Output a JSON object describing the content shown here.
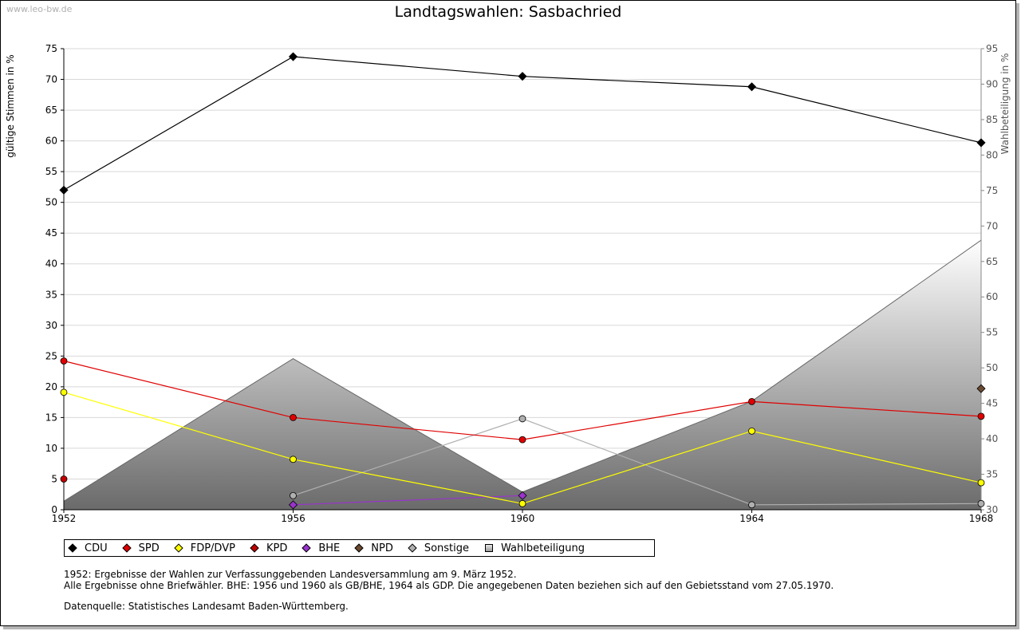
{
  "page": {
    "watermark": "www.leo-bw.de",
    "notes": {
      "line1": "1952: Ergebnisse der Wahlen zur Verfassunggebenden Landesversammlung am 9. März 1952.",
      "line2": "Alle Ergebnisse ohne Briefwähler. BHE: 1956 und 1960 als GB/BHE, 1964 als GDP. Die angegebenen Daten beziehen sich auf den Gebietsstand vom 27.05.1970.",
      "source": "Datenquelle: Statistisches Landesamt Baden-Württemberg."
    }
  },
  "legend": [
    {
      "label": "CDU",
      "color": "#000000"
    },
    {
      "label": "SPD",
      "color": "#e00000"
    },
    {
      "label": "FDP/DVP",
      "color": "#ffff00"
    },
    {
      "label": "KPD",
      "color": "#c00000"
    },
    {
      "label": "BHE",
      "color": "#9933cc"
    },
    {
      "label": "NPD",
      "color": "#6b4a32"
    },
    {
      "label": "Sonstige",
      "color": "#b0b0b0"
    },
    {
      "label": "Wahlbeteiligung",
      "color": "#a0a0a0"
    }
  ],
  "chart_data": {
    "type": "line",
    "title": "Landtagswahlen: Sasbachried",
    "xlabel": "",
    "ylabel": "gültige Stimmen in %",
    "y2label": "Wahlbeteiligung in %",
    "x": [
      1952,
      1956,
      1960,
      1964,
      1968
    ],
    "xlim": [
      1952,
      1968
    ],
    "ylim": [
      0,
      75
    ],
    "y2lim": [
      30,
      95
    ],
    "yticks": [
      0,
      5,
      10,
      15,
      20,
      25,
      30,
      35,
      40,
      45,
      50,
      55,
      60,
      65,
      70,
      75
    ],
    "y2ticks": [
      30,
      35,
      40,
      45,
      50,
      55,
      60,
      65,
      70,
      75,
      80,
      85,
      90,
      95
    ],
    "grid": true,
    "legend_position": "bottom-left",
    "area_series": {
      "name": "Wahlbeteiligung",
      "axis": "right",
      "x": [
        1952,
        1956,
        1960,
        1964,
        1968
      ],
      "values": [
        31.2,
        51.3,
        32.5,
        45.3,
        68.0
      ]
    },
    "series": [
      {
        "name": "CDU",
        "color": "#000000",
        "points": [
          [
            1952,
            52.0
          ],
          [
            1956,
            73.7
          ],
          [
            1960,
            70.5
          ],
          [
            1964,
            68.8
          ],
          [
            1968,
            59.7
          ]
        ]
      },
      {
        "name": "SPD",
        "color": "#e00000",
        "points": [
          [
            1952,
            24.2
          ],
          [
            1956,
            15.0
          ],
          [
            1960,
            11.4
          ],
          [
            1964,
            17.6
          ],
          [
            1968,
            15.2
          ]
        ]
      },
      {
        "name": "FDP/DVP",
        "color": "#ffff00",
        "points": [
          [
            1952,
            19.1
          ],
          [
            1956,
            8.2
          ],
          [
            1960,
            1.0
          ],
          [
            1964,
            12.8
          ],
          [
            1968,
            4.4
          ]
        ]
      },
      {
        "name": "KPD",
        "color": "#c00000",
        "points": [
          [
            1952,
            5.0
          ]
        ]
      },
      {
        "name": "BHE",
        "color": "#9933cc",
        "points": [
          [
            1956,
            0.8
          ],
          [
            1960,
            2.3
          ]
        ]
      },
      {
        "name": "NPD",
        "color": "#6b4a32",
        "points": [
          [
            1968,
            19.7
          ]
        ]
      },
      {
        "name": "Sonstige",
        "color": "#b0b0b0",
        "points": [
          [
            1956,
            2.3
          ],
          [
            1960,
            14.8
          ],
          [
            1964,
            0.8
          ],
          [
            1968,
            1.0
          ]
        ]
      }
    ]
  }
}
